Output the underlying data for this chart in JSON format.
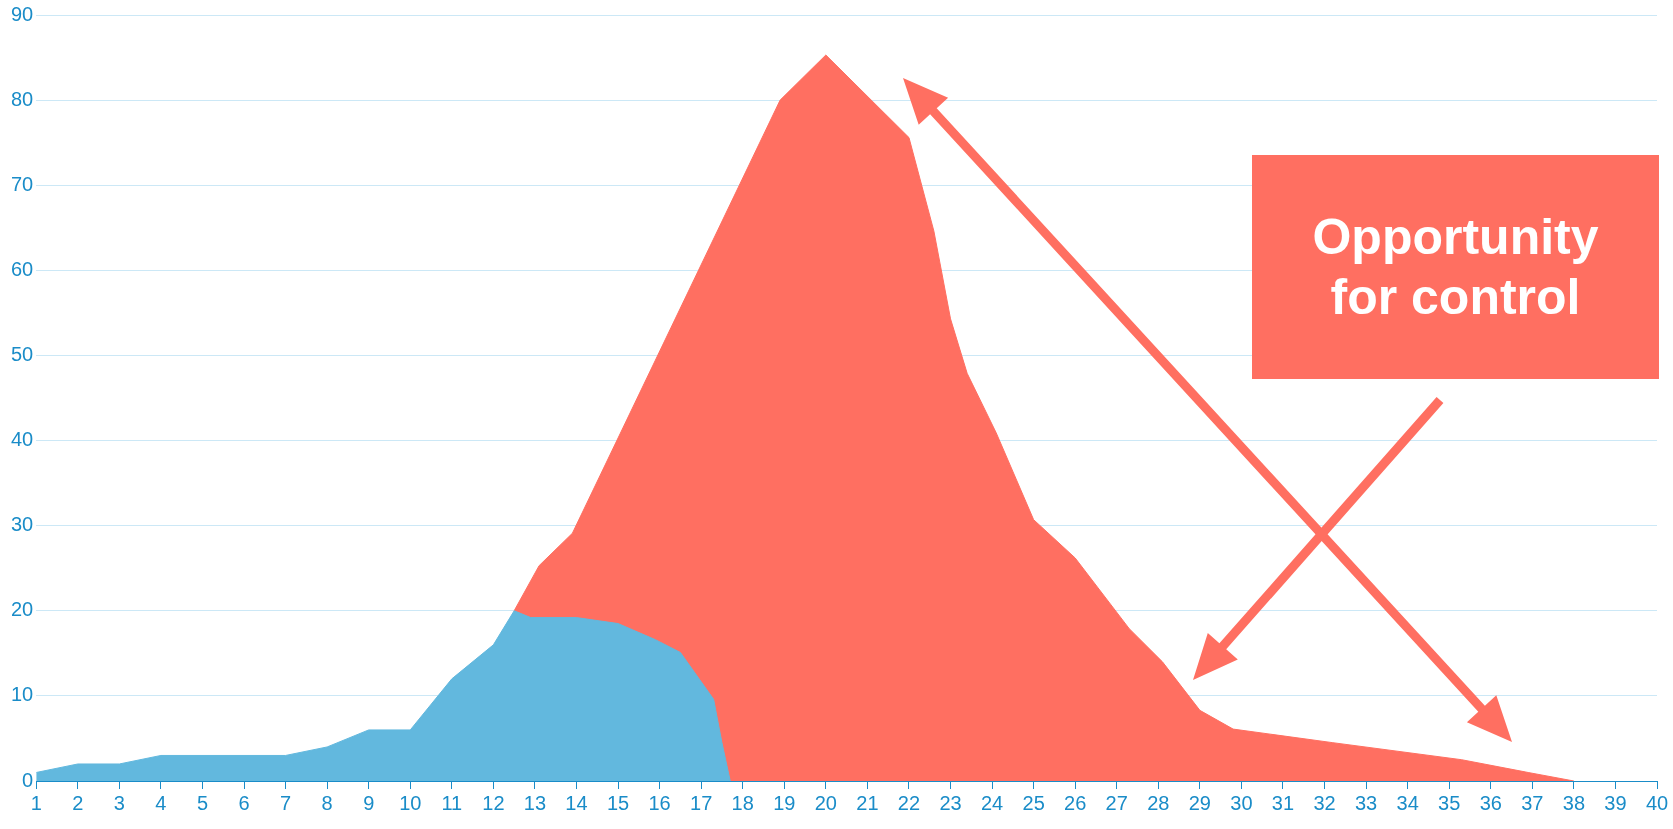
{
  "chart_data": {
    "type": "area",
    "xlim": [
      1,
      40
    ],
    "xticks": [
      1,
      2,
      3,
      4,
      5,
      6,
      7,
      8,
      9,
      10,
      11,
      12,
      13,
      14,
      15,
      16,
      17,
      18,
      19,
      20,
      21,
      22,
      23,
      24,
      25,
      26,
      27,
      28,
      29,
      30,
      31,
      32,
      33,
      34,
      35,
      36,
      37,
      38,
      39,
      40
    ],
    "ylim": [
      0,
      90
    ],
    "yticks": [
      0,
      10,
      20,
      30,
      40,
      50,
      60,
      70,
      80,
      90
    ],
    "grid": "y",
    "series": [
      {
        "color": "#62b8de",
        "x": [
          1,
          2,
          3,
          4,
          7,
          8,
          9,
          10,
          11,
          12,
          12.5,
          12.9,
          14,
          15,
          15.9,
          16.5,
          17.3,
          17.5,
          17.7
        ],
        "values": [
          1,
          2,
          2,
          3,
          3,
          4,
          6,
          6,
          12,
          16,
          20,
          19.2,
          19.2,
          18.5,
          16.6,
          15.1,
          9.6,
          4.5,
          0
        ]
      },
      {
        "color": "#ff6f61",
        "x": [
          12.5,
          13.1,
          13.9,
          18.9,
          20,
          22,
          22.6,
          23,
          23.4,
          24.1,
          25,
          26,
          27.3,
          28.1,
          29,
          29.8,
          32.2,
          35.3,
          36.9,
          38
        ],
        "values": [
          20,
          25.3,
          29.1,
          80,
          85.3,
          75.6,
          64.6,
          54.3,
          47.9,
          40.9,
          30.7,
          26.2,
          17.9,
          14,
          8.3,
          6.1,
          4.5,
          2.5,
          1,
          0
        ]
      }
    ],
    "annotations": [
      "Opportunity for control"
    ]
  }
}
